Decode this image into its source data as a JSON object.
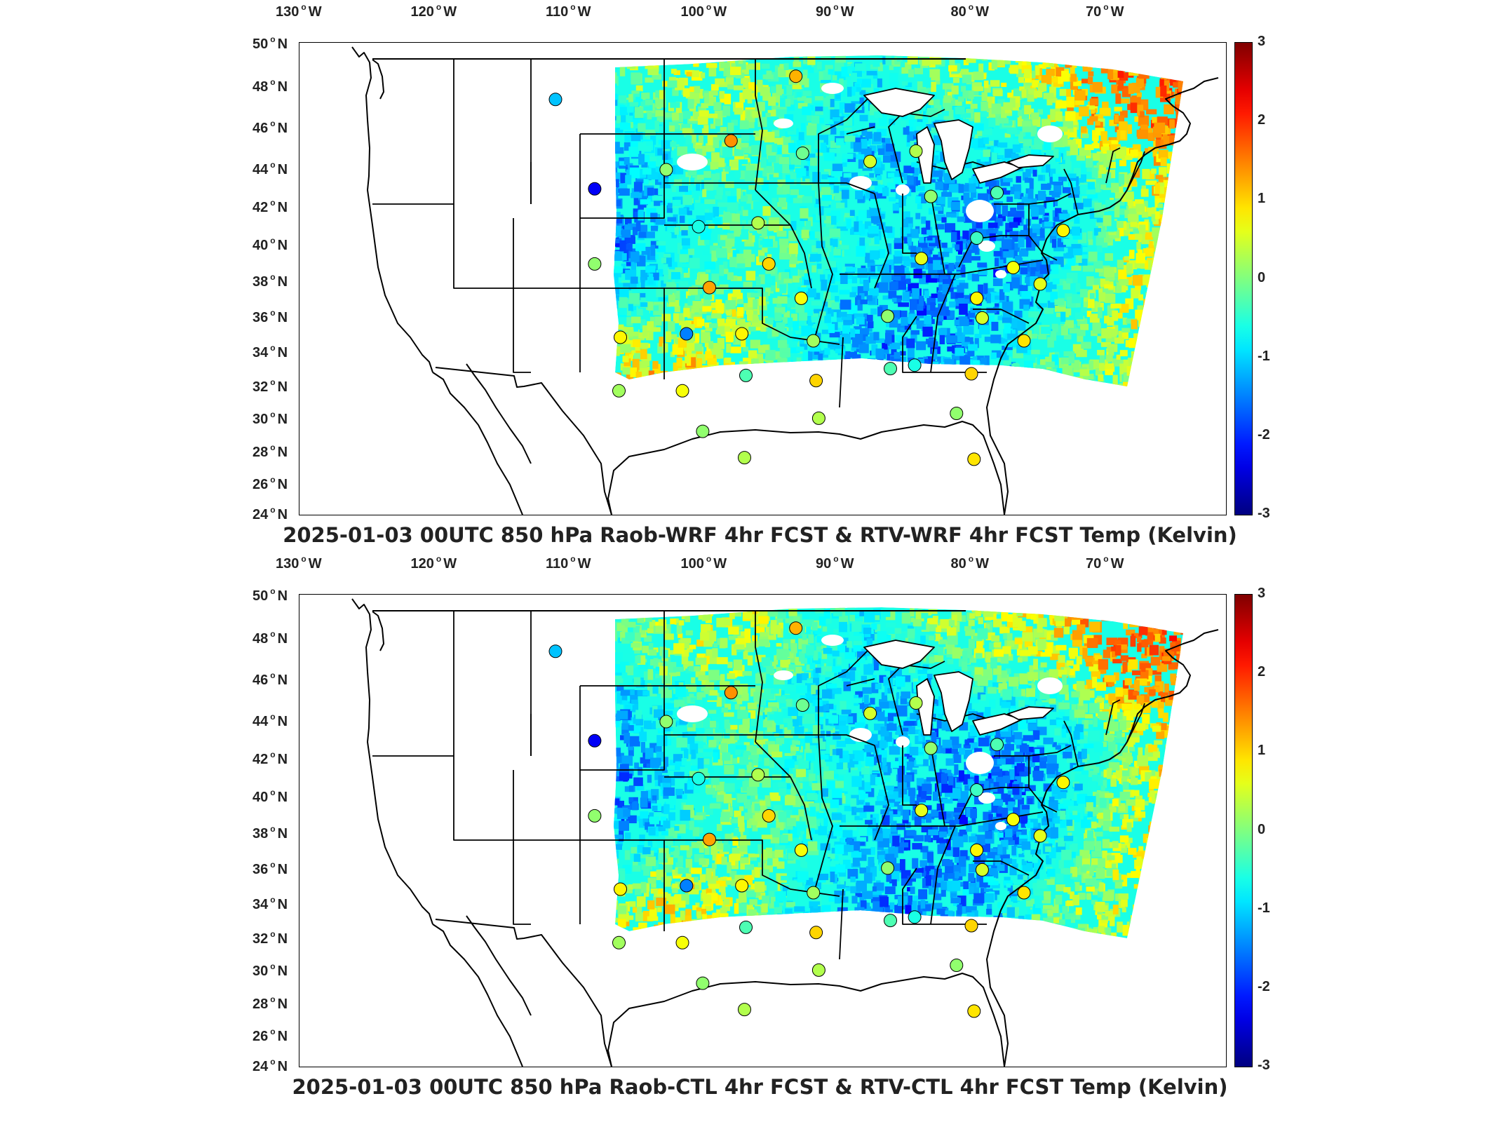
{
  "panels": [
    {
      "id": "top",
      "title": "2025-01-03 00UTC 850 hPa Raob-WRF 4hr FCST & RTV-WRF 4hr FCST Temp (Kelvin)"
    },
    {
      "id": "bottom",
      "title": "2025-01-03 00UTC 850 hPa Raob-CTL 4hr FCST & RTV-CTL 4hr FCST Temp (Kelvin)"
    }
  ],
  "axes": {
    "lon_ticks": [
      {
        "value": -130,
        "num": "130",
        "hemi": "W"
      },
      {
        "value": -120,
        "num": "120",
        "hemi": "W"
      },
      {
        "value": -110,
        "num": "110",
        "hemi": "W"
      },
      {
        "value": -100,
        "num": "100",
        "hemi": "W"
      },
      {
        "value": -90,
        "num": "90",
        "hemi": "W"
      },
      {
        "value": -80,
        "num": "80",
        "hemi": "W"
      },
      {
        "value": -70,
        "num": "70",
        "hemi": "W"
      }
    ],
    "lat_ticks": [
      {
        "value": 50,
        "num": "50",
        "hemi": "N"
      },
      {
        "value": 48,
        "num": "48",
        "hemi": "N"
      },
      {
        "value": 46,
        "num": "46",
        "hemi": "N"
      },
      {
        "value": 44,
        "num": "44",
        "hemi": "N"
      },
      {
        "value": 42,
        "num": "42",
        "hemi": "N"
      },
      {
        "value": 40,
        "num": "40",
        "hemi": "N"
      },
      {
        "value": 38,
        "num": "38",
        "hemi": "N"
      },
      {
        "value": 36,
        "num": "36",
        "hemi": "N"
      },
      {
        "value": 34,
        "num": "34",
        "hemi": "N"
      },
      {
        "value": 32,
        "num": "32",
        "hemi": "N"
      },
      {
        "value": 30,
        "num": "30",
        "hemi": "N"
      },
      {
        "value": 28,
        "num": "28",
        "hemi": "N"
      },
      {
        "value": 26,
        "num": "26",
        "hemi": "N"
      },
      {
        "value": 24,
        "num": "24",
        "hemi": "N"
      }
    ]
  },
  "colorbar": {
    "colormap": "jet",
    "range": [
      -3,
      3
    ],
    "ticks": [
      "3",
      "2",
      "1",
      "0",
      "-1",
      "-2",
      "-3"
    ]
  },
  "raob_stations": [
    {
      "lon": -111.4,
      "lat": 47.5,
      "value": -1.1
    },
    {
      "lon": -108.5,
      "lat": 43.1,
      "value": -2.3
    },
    {
      "lon": -108.5,
      "lat": 39.1,
      "value": 0.1
    },
    {
      "lon": -106.6,
      "lat": 35.0,
      "value": 0.8
    },
    {
      "lon": -106.7,
      "lat": 31.9,
      "value": 0.2
    },
    {
      "lon": -103.2,
      "lat": 44.1,
      "value": 0.1
    },
    {
      "lon": -100.8,
      "lat": 41.1,
      "value": -0.6
    },
    {
      "lon": -98.4,
      "lat": 45.5,
      "value": 1.4
    },
    {
      "lon": -100.0,
      "lat": 37.8,
      "value": 1.3
    },
    {
      "lon": -101.7,
      "lat": 35.2,
      "value": -1.5
    },
    {
      "lon": -102.0,
      "lat": 31.9,
      "value": 0.7
    },
    {
      "lon": -100.5,
      "lat": 29.4,
      "value": 0.1
    },
    {
      "lon": -97.6,
      "lat": 35.2,
      "value": 0.8
    },
    {
      "lon": -97.3,
      "lat": 32.8,
      "value": -0.3
    },
    {
      "lon": -97.4,
      "lat": 27.8,
      "value": 0.3
    },
    {
      "lon": -96.4,
      "lat": 41.3,
      "value": 0.3
    },
    {
      "lon": -95.6,
      "lat": 39.1,
      "value": 1.0
    },
    {
      "lon": -93.2,
      "lat": 37.2,
      "value": 0.7
    },
    {
      "lon": -93.1,
      "lat": 44.9,
      "value": -0.1
    },
    {
      "lon": -93.6,
      "lat": 48.6,
      "value": 1.2
    },
    {
      "lon": -92.3,
      "lat": 34.8,
      "value": 0.2
    },
    {
      "lon": -92.1,
      "lat": 32.5,
      "value": 1.0
    },
    {
      "lon": -91.9,
      "lat": 30.2,
      "value": 0.3
    },
    {
      "lon": -88.1,
      "lat": 44.5,
      "value": 0.5
    },
    {
      "lon": -86.8,
      "lat": 36.2,
      "value": 0.1
    },
    {
      "lon": -86.6,
      "lat": 33.2,
      "value": -0.3
    },
    {
      "lon": -84.8,
      "lat": 33.4,
      "value": -0.6
    },
    {
      "lon": -84.7,
      "lat": 45.0,
      "value": 0.3
    },
    {
      "lon": -83.6,
      "lat": 42.7,
      "value": 0.1
    },
    {
      "lon": -84.3,
      "lat": 39.4,
      "value": 0.6
    },
    {
      "lon": -80.2,
      "lat": 40.5,
      "value": -0.4
    },
    {
      "lon": -80.2,
      "lat": 37.2,
      "value": 0.8
    },
    {
      "lon": -79.8,
      "lat": 36.1,
      "value": 0.5
    },
    {
      "lon": -80.6,
      "lat": 32.9,
      "value": 1.0
    },
    {
      "lon": -81.7,
      "lat": 30.5,
      "value": 0.1
    },
    {
      "lon": -80.4,
      "lat": 27.7,
      "value": 0.9
    },
    {
      "lon": -77.5,
      "lat": 38.9,
      "value": 0.7
    },
    {
      "lon": -76.7,
      "lat": 34.8,
      "value": 0.9
    },
    {
      "lon": -75.5,
      "lat": 38.0,
      "value": 0.6
    },
    {
      "lon": -78.7,
      "lat": 42.9,
      "value": -0.3
    },
    {
      "lon": -73.8,
      "lat": 40.9,
      "value": 0.8
    }
  ]
}
